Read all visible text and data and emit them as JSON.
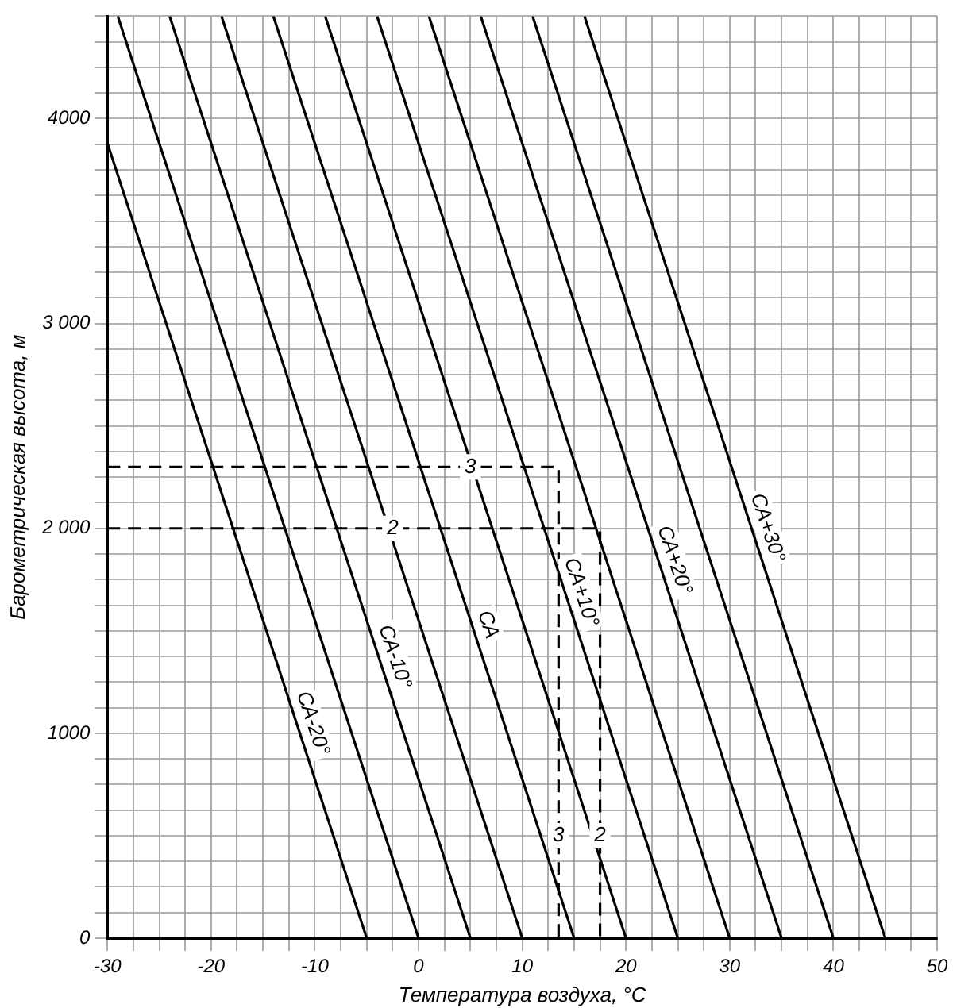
{
  "chart_data": {
    "type": "line",
    "xlabel": "Температура воздуха, °С",
    "ylabel": "Барометрическая высота, м",
    "xlim": [
      -30,
      50
    ],
    "ylim": [
      0,
      4500
    ],
    "grid": true,
    "legend": false,
    "marker": "none",
    "xticks": [
      -30,
      {
        "value": -27.5,
        "label": null
      },
      {
        "value": -25,
        "label": null
      },
      {
        "value": -22.5,
        "label": null
      },
      -20,
      {
        "value": -17.5,
        "label": null
      },
      {
        "value": -15,
        "label": null
      },
      {
        "value": -12.5,
        "label": null
      },
      -10,
      {
        "value": -7.5,
        "label": null
      },
      {
        "value": -5,
        "label": null
      },
      {
        "value": -2.5,
        "label": null
      },
      0,
      {
        "value": 2.5,
        "label": null
      },
      {
        "value": 5,
        "label": null
      },
      {
        "value": 7.5,
        "label": null
      },
      10,
      {
        "value": 12.5,
        "label": null
      },
      {
        "value": 15,
        "label": null
      },
      {
        "value": 17.5,
        "label": null
      },
      20,
      {
        "value": 22.5,
        "label": null
      },
      {
        "value": 25,
        "label": null
      },
      {
        "value": 27.5,
        "label": null
      },
      30,
      {
        "value": 32.5,
        "label": null
      },
      {
        "value": 35,
        "label": null
      },
      {
        "value": 37.5,
        "label": null
      },
      40,
      {
        "value": 42.5,
        "label": null
      },
      {
        "value": 45,
        "label": null
      },
      {
        "value": 47.5,
        "label": null
      },
      50
    ],
    "yticks": [
      0,
      {
        "value": 125,
        "label": null
      },
      {
        "value": 250,
        "label": null
      },
      {
        "value": 375,
        "label": null
      },
      {
        "value": 500,
        "label": null
      },
      {
        "value": 625,
        "label": null
      },
      {
        "value": 750,
        "label": null
      },
      {
        "value": 875,
        "label": null
      },
      1000,
      {
        "value": 1125,
        "label": null
      },
      {
        "value": 1250,
        "label": null
      },
      {
        "value": 1375,
        "label": null
      },
      {
        "value": 1500,
        "label": null
      },
      {
        "value": 1625,
        "label": null
      },
      {
        "value": 1750,
        "label": null
      },
      {
        "value": 1875,
        "label": null
      },
      {
        "value": 2000,
        "label": "2 000"
      },
      {
        "value": 2125,
        "label": null
      },
      {
        "value": 2250,
        "label": null
      },
      {
        "value": 2375,
        "label": null
      },
      {
        "value": 2500,
        "label": null
      },
      {
        "value": 2625,
        "label": null
      },
      {
        "value": 2750,
        "label": null
      },
      {
        "value": 2875,
        "label": null
      },
      {
        "value": 3000,
        "label": "3 000"
      },
      {
        "value": 3125,
        "label": null
      },
      {
        "value": 3250,
        "label": null
      },
      {
        "value": 3375,
        "label": null
      },
      {
        "value": 3500,
        "label": null
      },
      {
        "value": 3625,
        "label": null
      },
      {
        "value": 3750,
        "label": null
      },
      {
        "value": 3875,
        "label": null
      },
      4000,
      {
        "value": 4125,
        "label": null
      },
      {
        "value": 4250,
        "label": null
      },
      {
        "value": 4375,
        "label": null
      },
      {
        "value": 4500,
        "label": null
      }
    ],
    "series": [
      {
        "name": "СА-20°",
        "color": "#000000",
        "x": [
          -5,
          -30
        ],
        "values": [
          0,
          3880
        ]
      },
      {
        "color": "#000000",
        "x": [
          0,
          -29
        ],
        "values": [
          0,
          4500
        ]
      },
      {
        "name": "СА-10°",
        "color": "#000000",
        "x": [
          5,
          -24
        ],
        "values": [
          0,
          4500
        ]
      },
      {
        "color": "#000000",
        "x": [
          10,
          -19
        ],
        "values": [
          0,
          4500
        ]
      },
      {
        "name": "СА",
        "color": "#000000",
        "x": [
          15,
          -14
        ],
        "values": [
          0,
          4500
        ]
      },
      {
        "color": "#000000",
        "x": [
          20,
          -9
        ],
        "values": [
          0,
          4500
        ]
      },
      {
        "name": "СА+10°",
        "color": "#000000",
        "x": [
          25,
          -4
        ],
        "values": [
          0,
          4500
        ]
      },
      {
        "color": "#000000",
        "x": [
          30,
          1
        ],
        "values": [
          0,
          4500
        ]
      },
      {
        "name": "СА+20°",
        "color": "#000000",
        "x": [
          35,
          6
        ],
        "values": [
          0,
          4500
        ]
      },
      {
        "color": "#000000",
        "x": [
          40,
          11
        ],
        "values": [
          0,
          4500
        ]
      },
      {
        "name": "СА+30°",
        "color": "#000000",
        "x": [
          45,
          16
        ],
        "values": [
          0,
          4500
        ]
      },
      {
        "color": "#000000",
        "line_style": "dashed",
        "x": [
          -30,
          13.5,
          13.5
        ],
        "values": [
          2300,
          2300,
          0
        ]
      },
      {
        "color": "#000000",
        "line_style": "dashed",
        "x": [
          -30,
          17.5,
          17.5
        ],
        "values": [
          2000,
          2000,
          0
        ]
      }
    ],
    "annotations": [
      {
        "text": "3",
        "x": 5,
        "y": 2300
      },
      {
        "text": "2",
        "x": -2.5,
        "y": 2000
      },
      {
        "text": "3",
        "x": 13.5,
        "y": 500
      },
      {
        "text": "2",
        "x": 17.5,
        "y": 500
      }
    ]
  }
}
